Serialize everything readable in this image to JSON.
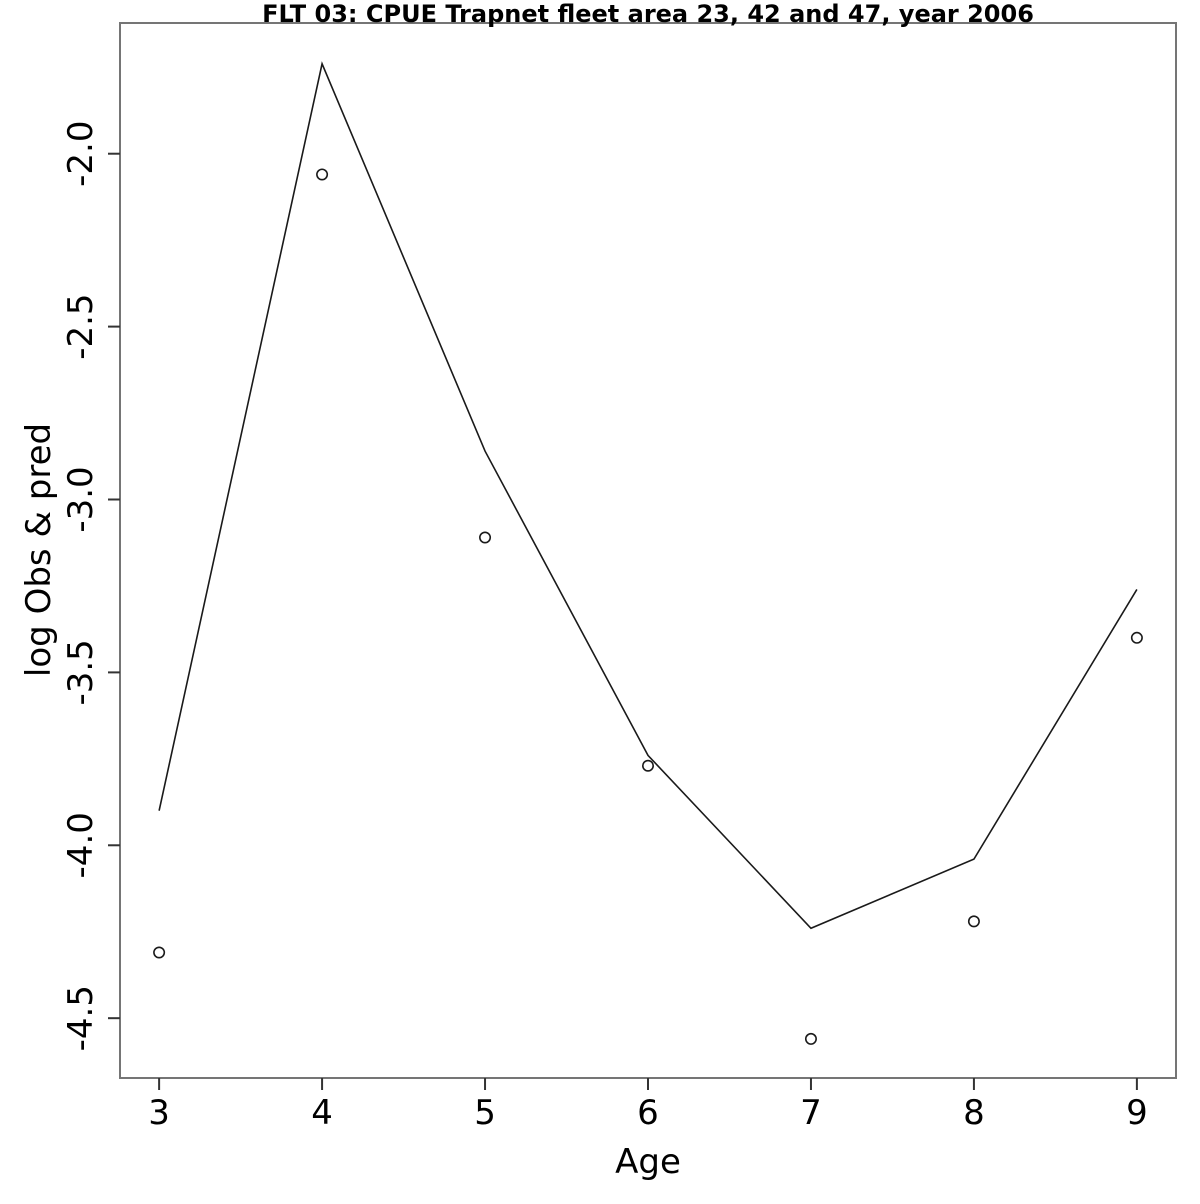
{
  "figure": {
    "kind": "R-base-plot",
    "background": "#ffffff"
  },
  "chart_data": {
    "type": "line",
    "title": "FLT 03: CPUE Trapnet fleet area 23, 42 and 47, year 2006",
    "xlabel": "Age",
    "ylabel": "log Obs & pred",
    "x": [
      3,
      4,
      5,
      6,
      7,
      8,
      9
    ],
    "series": [
      {
        "name": "observed",
        "marker": "open-circle",
        "style": "points",
        "values": [
          -4.31,
          -2.06,
          -3.11,
          -3.77,
          -4.56,
          -4.22,
          -3.4
        ]
      },
      {
        "name": "predicted",
        "marker": "none",
        "style": "line",
        "values": [
          -3.9,
          -1.74,
          -2.86,
          -3.74,
          -4.24,
          -4.04,
          -3.26
        ]
      }
    ],
    "xlim": [
      2.76,
      9.24
    ],
    "ylim": [
      -4.673,
      -1.622
    ],
    "xticks": [
      3,
      4,
      5,
      6,
      7,
      8,
      9
    ],
    "xtick_labels": [
      "3",
      "4",
      "5",
      "6",
      "7",
      "8",
      "9"
    ],
    "yticks": [
      -4.5,
      -4.0,
      -3.5,
      -3.0,
      -2.5,
      -2.0
    ],
    "ytick_labels": [
      "-4.5",
      "-4.0",
      "-3.5",
      "-3.0",
      "-2.5",
      "-2.0"
    ],
    "grid": false,
    "legend": "none",
    "colors": {
      "line": "#1a1a1a",
      "point_stroke": "#1a1a1a",
      "point_fill": "none",
      "box": "#757575",
      "tick": "#333333",
      "text": "#000000",
      "background": "#ffffff"
    }
  }
}
